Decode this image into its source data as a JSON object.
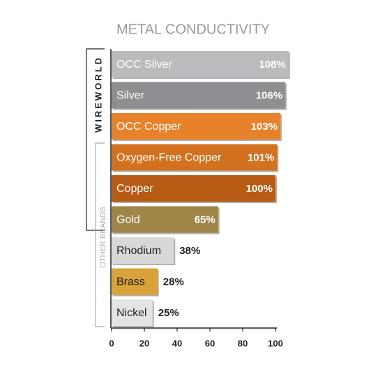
{
  "chart_data": {
    "type": "barh",
    "title": "METAL CONDUCTIVITY",
    "categories": [
      "OCC Silver",
      "Silver",
      "OCC Copper",
      "Oxygen-Free Copper",
      "Copper",
      "Gold",
      "Rhodium",
      "Brass",
      "Nickel"
    ],
    "values": [
      108,
      106,
      103,
      101,
      100,
      65,
      38,
      28,
      25
    ],
    "value_labels": [
      "108%",
      "106%",
      "103%",
      "101%",
      "100%",
      "65%",
      "38%",
      "28%",
      "25%"
    ],
    "colors": [
      "#b9bbbe",
      "#8d8f92",
      "#e8822a",
      "#d2711f",
      "#b75b14",
      "#a08548",
      "#d8d8d8",
      "#d9a33a",
      "#e4e4e4"
    ],
    "xlim": [
      0,
      100
    ],
    "xticks": [
      0,
      20,
      40,
      60,
      80,
      100
    ],
    "groups": [
      "WIREWORLD",
      "OTHER BRANDS"
    ]
  }
}
